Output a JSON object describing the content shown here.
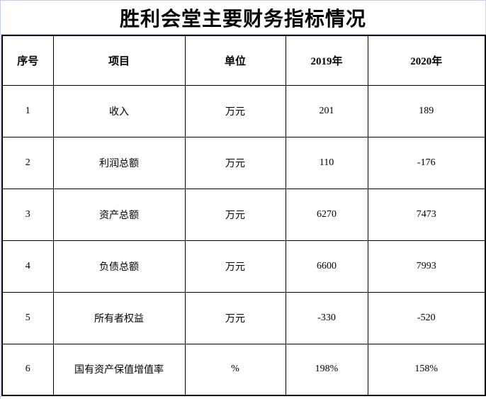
{
  "title": "胜利会堂主要财务指标情况",
  "table": {
    "headers": [
      "序号",
      "项目",
      "单位",
      "2019年",
      "2020年"
    ],
    "rows": [
      [
        "1",
        "收入",
        "万元",
        "201",
        "189"
      ],
      [
        "2",
        "利润总额",
        "万元",
        "110",
        "-176"
      ],
      [
        "3",
        "资产总额",
        "万元",
        "6270",
        "7473"
      ],
      [
        "4",
        "负债总额",
        "万元",
        "6600",
        "7993"
      ],
      [
        "5",
        "所有者权益",
        "万元",
        "-330",
        "-520"
      ],
      [
        "6",
        "国有资产保值增值率",
        "%",
        "198%",
        "158%"
      ]
    ]
  },
  "colors": {
    "table_border": "#000000",
    "gridline_light": "#c9cfe0",
    "background": "#ffffff",
    "text": "#000000"
  }
}
